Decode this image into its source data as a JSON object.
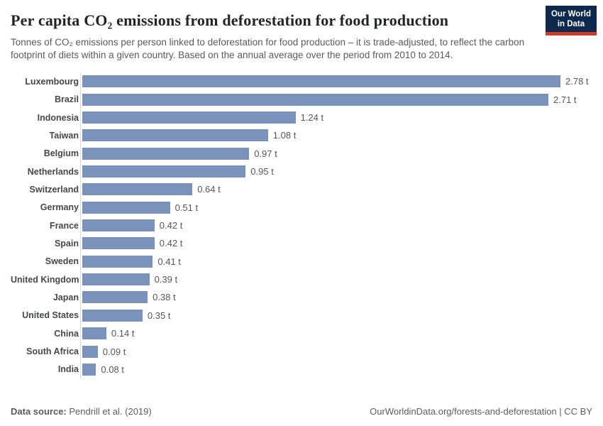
{
  "header": {
    "title": "Per capita CO₂ emissions from deforestation for food production",
    "subtitle": "Tonnes of CO₂ emissions per person linked to deforestation for food production – it is trade-adjusted, to reflect the carbon footprint of diets within a given country. Based on the annual average over the period from 2010 to 2014.",
    "logo": {
      "line1": "Our World",
      "line2": "in Data"
    }
  },
  "chart_data": {
    "type": "bar",
    "orientation": "horizontal",
    "title": "Per capita CO₂ emissions from deforestation for food production",
    "xlabel": "",
    "ylabel": "",
    "unit": "t",
    "xlim": [
      0,
      2.78
    ],
    "grid": false,
    "legend": "none",
    "categories": [
      "Luxembourg",
      "Brazil",
      "Indonesia",
      "Taiwan",
      "Belgium",
      "Netherlands",
      "Switzerland",
      "Germany",
      "France",
      "Spain",
      "Sweden",
      "United Kingdom",
      "Japan",
      "United States",
      "China",
      "South Africa",
      "India"
    ],
    "values": [
      2.78,
      2.71,
      1.24,
      1.08,
      0.97,
      0.95,
      0.64,
      0.51,
      0.42,
      0.42,
      0.41,
      0.39,
      0.38,
      0.35,
      0.14,
      0.09,
      0.08
    ],
    "value_labels": [
      "2.78 t",
      "2.71 t",
      "1.24 t",
      "1.08 t",
      "0.97 t",
      "0.95 t",
      "0.64 t",
      "0.51 t",
      "0.42 t",
      "0.42 t",
      "0.41 t",
      "0.39 t",
      "0.38 t",
      "0.35 t",
      "0.14 t",
      "0.09 t",
      "0.08 t"
    ]
  },
  "colors": {
    "bar": "#7b93bb",
    "axis_line": "#d9d9d9",
    "logo_navy": "#0d2a4e",
    "logo_red": "#cc392c"
  },
  "footer": {
    "datasource_label": "Data source:",
    "datasource_value": "Pendrill et al. (2019)",
    "rights": "OurWorldinData.org/forests-and-deforestation | CC BY"
  }
}
